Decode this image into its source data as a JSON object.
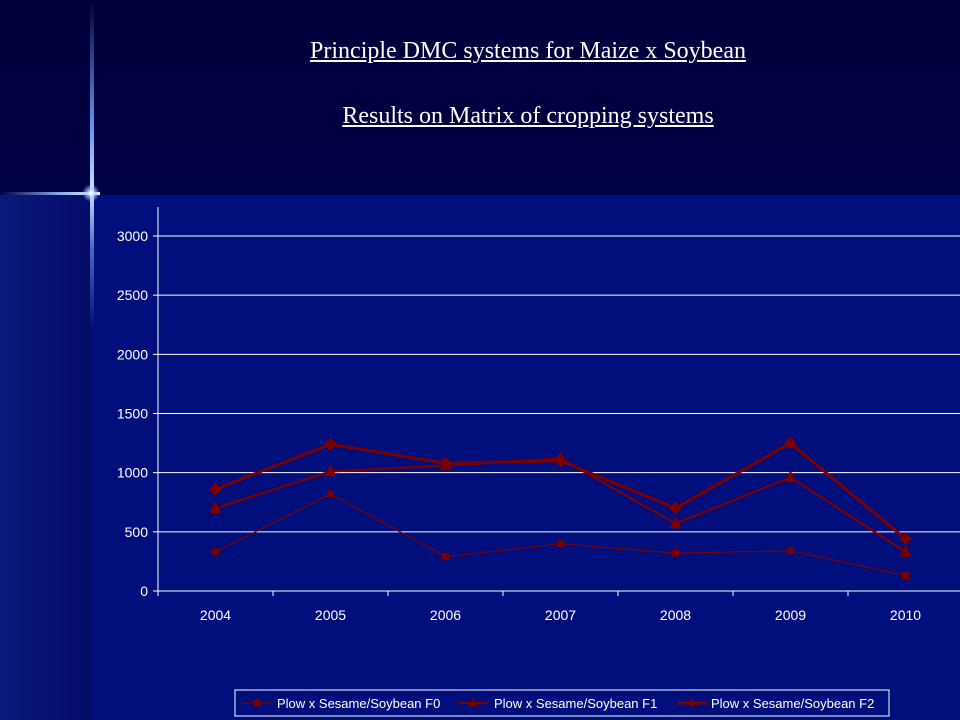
{
  "slide": {
    "title_line1": "Principle DMC systems for Maize x Soybean",
    "title_line2": "Results on Matrix of cropping systems"
  },
  "chart_data": {
    "type": "line",
    "categories": [
      "2004",
      "2005",
      "2006",
      "2007",
      "2008",
      "2009",
      "2010"
    ],
    "ylim": [
      0,
      3000
    ],
    "yticks": [
      0,
      500,
      1000,
      1500,
      2000,
      2500,
      3000
    ],
    "grid": "horizontal",
    "legend_position": "bottom",
    "series_color": "#7a0000",
    "series": [
      {
        "name": "Plow x Sesame/Soybean F0",
        "marker": "square",
        "values": [
          330,
          820,
          290,
          400,
          320,
          340,
          130
        ]
      },
      {
        "name": "Plow  x Sesame/Soybean F1",
        "marker": "triangle",
        "values": [
          700,
          1010,
          1060,
          1120,
          570,
          960,
          330
        ]
      },
      {
        "name": "Plow  x Sesame/Soybean F2",
        "marker": "diamond",
        "values": [
          860,
          1240,
          1080,
          1100,
          700,
          1250,
          440
        ]
      }
    ]
  }
}
